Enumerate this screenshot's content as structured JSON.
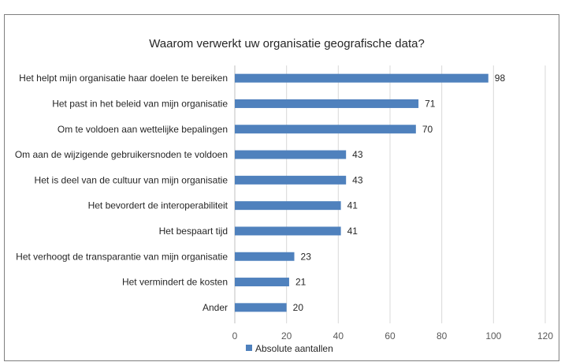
{
  "chart_data": {
    "type": "bar",
    "orientation": "horizontal",
    "title": "Waarom verwerkt uw organisatie geografische data?",
    "categories": [
      "Het helpt mijn organisatie haar doelen te bereiken",
      "Het past in het beleid van mijn organisatie",
      "Om te voldoen aan wettelijke bepalingen",
      "Om aan de wijzigende gebruikersnoden te voldoen",
      "Het is deel van de cultuur van mijn organisatie",
      "Het bevordert de interoperabiliteit",
      "Het bespaart tijd",
      "Het verhoogt de transparantie van mijn organisatie",
      "Het vermindert de kosten",
      "Ander"
    ],
    "series": [
      {
        "name": "Absolute aantallen",
        "values": [
          98,
          71,
          70,
          43,
          43,
          41,
          41,
          23,
          21,
          20
        ]
      }
    ],
    "xlim": [
      0,
      120
    ],
    "xticks": [
      0,
      20,
      40,
      60,
      80,
      100,
      120
    ],
    "xlabel": "",
    "ylabel": "",
    "grid": "vertical",
    "legend_position": "bottom-left",
    "colors": {
      "bar": "#4f81bd"
    }
  }
}
